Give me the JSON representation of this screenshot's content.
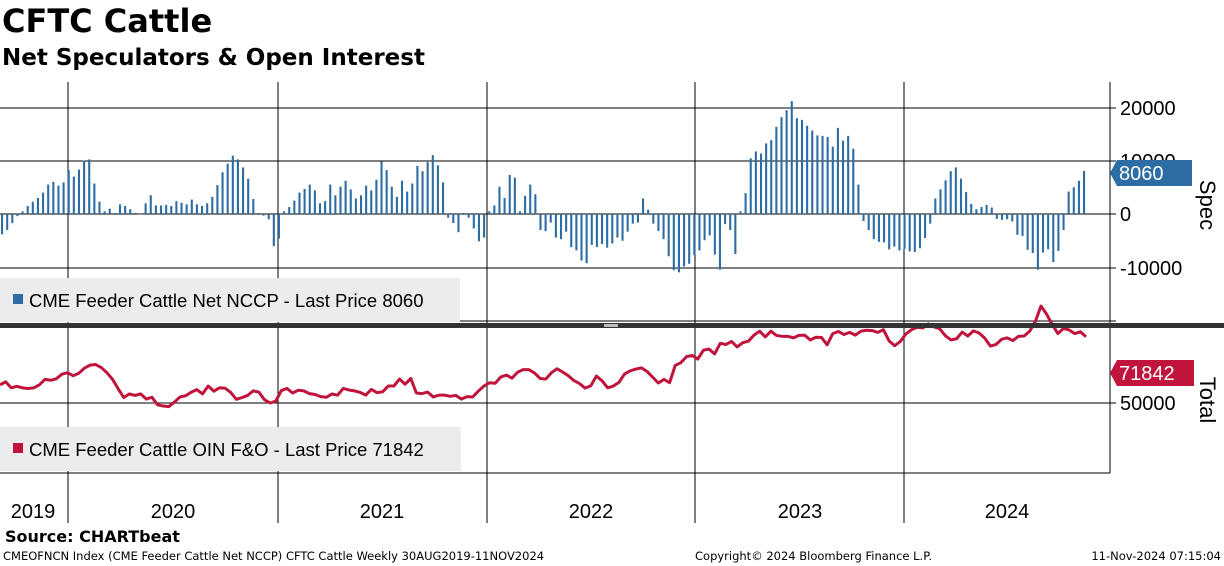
{
  "chart_data": {
    "title": "CFTC Cattle",
    "subtitle": "Net Speculators & Open Interest",
    "years": [
      "2019",
      "2020",
      "2021",
      "2022",
      "2023",
      "2024"
    ],
    "panels": [
      {
        "type": "bar",
        "axis_label": "Spec",
        "y_ticks": [
          "20000",
          "10000",
          "0",
          "-10000"
        ],
        "ylim": [
          -20000,
          25000
        ],
        "legend": "CME Feeder Cattle Net NCCP - Last Price 8060",
        "last_value_label": "8060",
        "color": "#2e6da4",
        "series_name": "CME Feeder Cattle Net NCCP",
        "x_range": "30AUG2019-11NOV2024",
        "values": [
          -3800,
          -3000,
          -1700,
          -400,
          500,
          1500,
          2300,
          3000,
          4000,
          5500,
          6000,
          5300,
          5900,
          8200,
          7000,
          8300,
          10000,
          10200,
          5700,
          2300,
          500,
          1000,
          200,
          1800,
          1500,
          900,
          200,
          -100,
          2000,
          3500,
          1600,
          1600,
          1700,
          1500,
          2400,
          2100,
          1800,
          2700,
          1800,
          1500,
          2000,
          3200,
          5400,
          7800,
          9400,
          10900,
          10200,
          8700,
          6600,
          2800,
          200,
          -300,
          -1000,
          -6000,
          -4600,
          500,
          1300,
          2500,
          4000,
          4700,
          5500,
          4400,
          2000,
          2400,
          5500,
          3500,
          5100,
          6200,
          4600,
          2900,
          3500,
          5300,
          4400,
          6400,
          9800,
          8200,
          5100,
          3200,
          6200,
          4200,
          5700,
          9000,
          8000,
          9700,
          11000,
          9100,
          5900,
          -700,
          -1700,
          -3400,
          200,
          -700,
          -2700,
          -5100,
          -4400,
          500,
          1600,
          5100,
          3000,
          7300,
          6800,
          500,
          3400,
          5500,
          3700,
          -3000,
          -3200,
          -1600,
          -4400,
          -4700,
          -3300,
          -6200,
          -6800,
          -8700,
          -9200,
          -5800,
          -6200,
          -5600,
          -6300,
          -5500,
          -4400,
          -5000,
          -3300,
          -1800,
          -1600,
          2900,
          800,
          -1800,
          -3200,
          -4700,
          -7900,
          -10500,
          -10900,
          -9800,
          -9300,
          -7700,
          -6800,
          -4900,
          -4000,
          -7600,
          -10400,
          -1900,
          -3000,
          -7500,
          500,
          3900,
          10400,
          11700,
          11300,
          13200,
          13800,
          16300,
          18100,
          19400,
          21100,
          17900,
          17600,
          16500,
          15600,
          14700,
          14600,
          14400,
          12600,
          16100,
          13700,
          14600,
          12200,
          5500,
          -1300,
          -3000,
          -4700,
          -5200,
          -5300,
          -6600,
          -6100,
          -6800,
          -6500,
          -7000,
          -7100,
          -6400,
          -4500,
          -1800,
          2900,
          4600,
          6300,
          8000,
          8700,
          6600,
          4100,
          1900,
          900,
          1300,
          1700,
          1200,
          -900,
          -1100,
          -1000,
          -1400,
          -3900,
          -4100,
          -6700,
          -7300,
          -10400,
          -7200,
          -6600,
          -9000,
          -6900,
          -3000,
          4200,
          5000,
          6200,
          8060
        ]
      },
      {
        "type": "line",
        "axis_label": "Total",
        "y_ticks": [
          "50000"
        ],
        "ylim": [
          35000,
          80000
        ],
        "legend": "CME Feeder Cattle OIN F&O - Last Price 71842",
        "last_value_label": "71842",
        "color": "#c0143c",
        "series_name": "CME Feeder Cattle OIN F&O",
        "values": [
          56000,
          57000,
          55000,
          55500,
          55000,
          54800,
          55000,
          56000,
          57800,
          57500,
          58000,
          59500,
          60000,
          59000,
          59800,
          61500,
          62500,
          62700,
          61700,
          60000,
          57800,
          54700,
          51800,
          53000,
          52500,
          53000,
          51300,
          51900,
          49400,
          49000,
          48800,
          50300,
          52000,
          52400,
          53600,
          54400,
          53000,
          55600,
          53900,
          55000,
          54900,
          53500,
          51200,
          51800,
          52500,
          54000,
          53600,
          51100,
          50000,
          50600,
          54100,
          54800,
          53300,
          54200,
          54000,
          53100,
          52800,
          52100,
          51900,
          53000,
          52600,
          54800,
          54300,
          54000,
          53500,
          52600,
          54500,
          53400,
          53700,
          55600,
          55600,
          57900,
          56200,
          58100,
          53300,
          53100,
          53600,
          52000,
          52600,
          52600,
          52200,
          52500,
          51300,
          52100,
          52000,
          53900,
          55600,
          56700,
          56500,
          58600,
          59200,
          58200,
          60200,
          61000,
          61000,
          59900,
          58100,
          57900,
          60000,
          61300,
          60200,
          59000,
          57400,
          56400,
          54900,
          55700,
          58900,
          57300,
          55000,
          55600,
          56800,
          59600,
          60600,
          61200,
          61600,
          60400,
          58500,
          56600,
          57800,
          56700,
          62400,
          63300,
          65300,
          65700,
          64500,
          67400,
          67800,
          66200,
          69700,
          69300,
          70300,
          68500,
          69900,
          70400,
          72400,
          73700,
          71800,
          73700,
          72300,
          72000,
          72000,
          71500,
          72300,
          72400,
          70800,
          71700,
          71600,
          69200,
          72900,
          73600,
          72600,
          73300,
          72400,
          73700,
          74000,
          73900,
          73300,
          74200,
          70500,
          68900,
          70300,
          72800,
          74200,
          75000,
          74800,
          76100,
          75100,
          74500,
          72200,
          70800,
          71200,
          73400,
          72100,
          73800,
          73100,
          71400,
          68800,
          69300,
          71000,
          71500,
          70600,
          72000,
          72100,
          73700,
          76900,
          82000,
          79300,
          75900,
          72900,
          74600,
          74100,
          72900,
          73500,
          71842
        ]
      }
    ]
  },
  "source": "Source: CHARTbeat",
  "footer": {
    "left": "CMEOFNCN Index (CME Feeder Cattle Net NCCP) CFTC Cattle  Weekly 30AUG2019-11NOV2024",
    "center": "Copyright© 2024 Bloomberg Finance L.P.",
    "right": "11-Nov-2024 07:15:04"
  }
}
